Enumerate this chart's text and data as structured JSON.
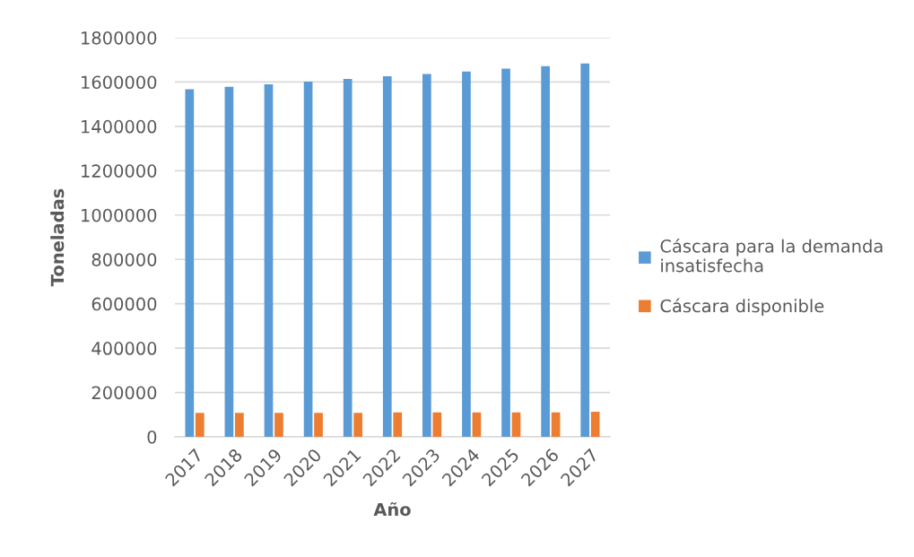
{
  "chart_data": {
    "type": "bar",
    "xlabel": "Año",
    "ylabel": "Toneladas",
    "categories": [
      "2017",
      "2018",
      "2019",
      "2020",
      "2021",
      "2022",
      "2023",
      "2024",
      "2025",
      "2026",
      "2027"
    ],
    "series": [
      {
        "name": "Cáscara para la demanda\ninsatisfecha",
        "color": "#5b9bd5",
        "values": [
          1567000,
          1579000,
          1590000,
          1602000,
          1614000,
          1626000,
          1636000,
          1647000,
          1660000,
          1672000,
          1684000
        ]
      },
      {
        "name": "Cáscara disponible",
        "color": "#ed7d31",
        "values": [
          108000,
          108000,
          108000,
          108000,
          108000,
          110000,
          110000,
          110000,
          110000,
          110000,
          113000
        ]
      }
    ],
    "ylim": [
      0,
      1800000
    ],
    "yticks": [
      0,
      200000,
      400000,
      600000,
      800000,
      1000000,
      1200000,
      1400000,
      1600000,
      1800000
    ],
    "grid": "y",
    "legend": "right"
  }
}
